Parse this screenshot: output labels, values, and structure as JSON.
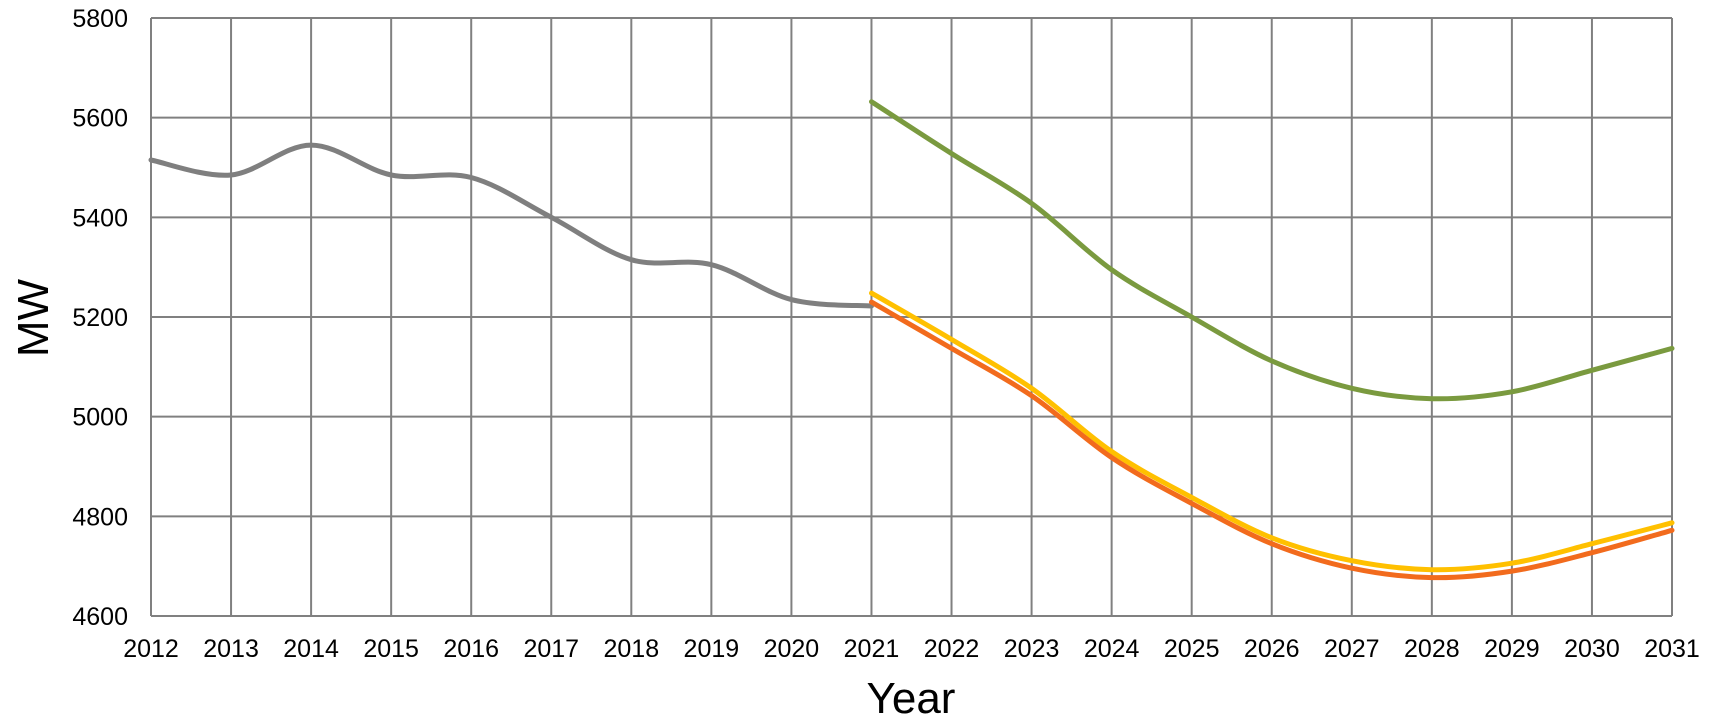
{
  "chart_data": {
    "type": "line",
    "title": "",
    "xlabel": "Year",
    "ylabel": "MW",
    "x": [
      2012,
      2013,
      2014,
      2015,
      2016,
      2017,
      2018,
      2019,
      2020,
      2021,
      2022,
      2023,
      2024,
      2025,
      2026,
      2027,
      2028,
      2029,
      2030,
      2031
    ],
    "x_tick_labels": [
      "2012",
      "2013",
      "2014",
      "2015",
      "2016",
      "2017",
      "2018",
      "2019",
      "2020",
      "2021",
      "2022",
      "2023",
      "2024",
      "2025",
      "2026",
      "2027",
      "2028",
      "2029",
      "2030",
      "2031"
    ],
    "ylim": [
      4600,
      5800
    ],
    "y_ticks": [
      4600,
      4800,
      5000,
      5200,
      5400,
      5600,
      5800
    ],
    "y_tick_labels": [
      "4600",
      "4800",
      "5000",
      "5200",
      "5400",
      "5600",
      "5800"
    ],
    "grid": true,
    "legend": "none",
    "series": [
      {
        "color": "#7f7f7f",
        "x": [
          2012,
          2013,
          2014,
          2015,
          2016,
          2017,
          2018,
          2019,
          2020,
          2021
        ],
        "values": [
          5515,
          5485,
          5545,
          5485,
          5480,
          5400,
          5315,
          5305,
          5235,
          5222
        ]
      },
      {
        "color": "#7a9a3f",
        "x": [
          2021,
          2022,
          2023,
          2024,
          2025,
          2026,
          2027,
          2028,
          2029,
          2030,
          2031
        ],
        "values": [
          5632,
          5528,
          5428,
          5295,
          5200,
          5112,
          5057,
          5036,
          5050,
          5093,
          5137
        ]
      },
      {
        "color": "#ffc000",
        "x": [
          2021,
          2022,
          2023,
          2024,
          2025,
          2026,
          2027,
          2028,
          2029,
          2030,
          2031
        ],
        "values": [
          5248,
          5155,
          5057,
          4930,
          4838,
          4757,
          4711,
          4693,
          4706,
          4745,
          4787
        ]
      },
      {
        "color": "#f26b1d",
        "x": [
          2021,
          2022,
          2023,
          2024,
          2025,
          2026,
          2027,
          2028,
          2029,
          2030,
          2031
        ],
        "values": [
          5230,
          5137,
          5042,
          4918,
          4826,
          4745,
          4696,
          4677,
          4690,
          4727,
          4772
        ]
      }
    ]
  }
}
